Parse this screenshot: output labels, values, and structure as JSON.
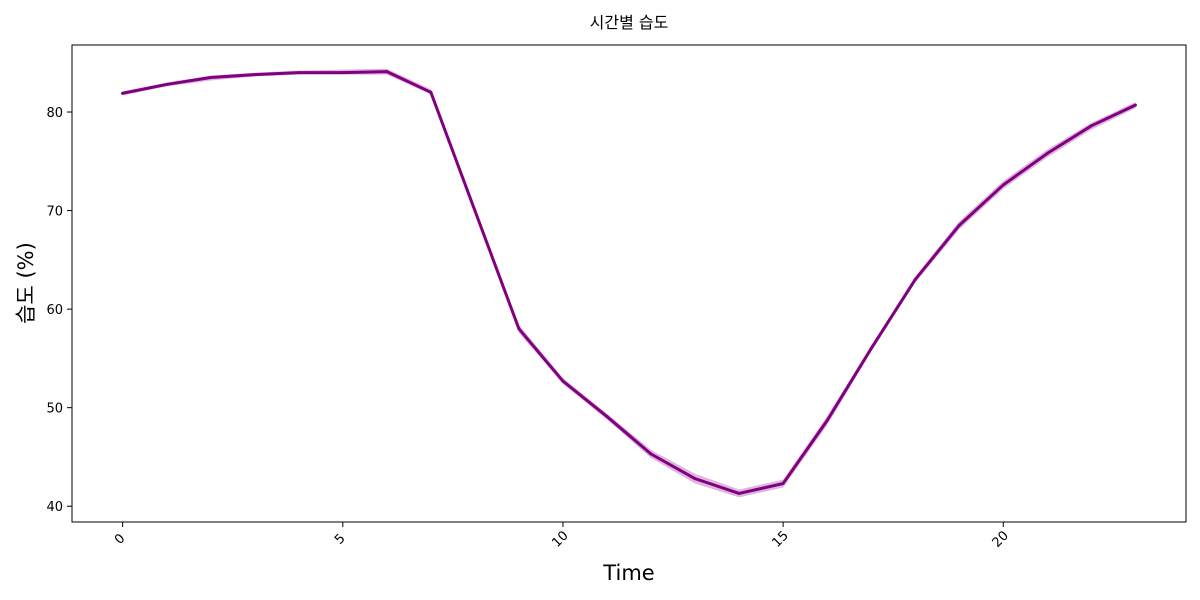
{
  "chart_data": {
    "type": "line",
    "title": "시간별 습도",
    "xlabel": "Time",
    "ylabel": "습도 (%)",
    "xlim": [
      -1.15,
      24.15
    ],
    "ylim": [
      38.4,
      86.8
    ],
    "xticks": [
      0,
      5,
      10,
      15,
      20
    ],
    "yticks": [
      40,
      50,
      60,
      70,
      80
    ],
    "grid": false,
    "colors": {
      "line": "#800080",
      "band": "#d8a8d8"
    },
    "series": [
      {
        "x": [
          0,
          1,
          2,
          3,
          4,
          5,
          6,
          7,
          8,
          9,
          10,
          11,
          12,
          13,
          14,
          15,
          16,
          17,
          18,
          19,
          20,
          21,
          22,
          23
        ],
        "y": [
          81.9,
          82.8,
          83.5,
          83.8,
          84.0,
          84.0,
          84.1,
          82.0,
          70.0,
          58.0,
          52.7,
          49.1,
          45.3,
          42.8,
          41.3,
          42.3,
          48.7,
          56.0,
          63.0,
          68.5,
          72.6,
          75.8,
          78.6,
          80.7
        ],
        "lower": [
          81.7,
          82.6,
          83.2,
          83.6,
          83.8,
          83.8,
          83.8,
          81.8,
          69.8,
          57.6,
          52.4,
          48.8,
          44.9,
          42.3,
          40.9,
          41.9,
          48.2,
          55.7,
          62.7,
          68.1,
          72.2,
          75.4,
          78.2,
          80.4
        ],
        "upper": [
          82.1,
          83.0,
          83.7,
          84.0,
          84.2,
          84.3,
          84.4,
          82.3,
          70.3,
          58.4,
          53.0,
          49.4,
          45.7,
          43.3,
          41.7,
          42.7,
          49.1,
          56.3,
          63.3,
          68.9,
          73.0,
          76.2,
          78.9,
          81.0
        ]
      }
    ]
  }
}
